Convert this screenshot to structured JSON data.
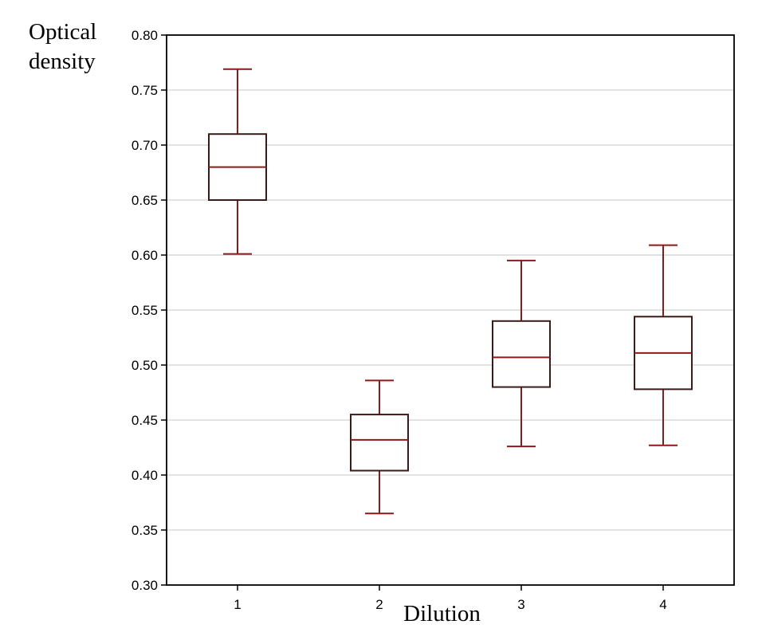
{
  "chart_data": {
    "type": "box",
    "title": "",
    "ylabel_lines": [
      "Optical",
      "density"
    ],
    "xlabel": "Dilution",
    "categories": [
      "1",
      "2",
      "3",
      "4"
    ],
    "ylim": [
      0.3,
      0.8
    ],
    "yticks": [
      "0.80",
      "0.75",
      "0.70",
      "0.65",
      "0.60",
      "0.55",
      "0.50",
      "0.45",
      "0.40",
      "0.35",
      "0.30"
    ],
    "grid": true,
    "boxes": [
      {
        "category": "1",
        "whisker_low": 0.601,
        "q1": 0.65,
        "median": 0.68,
        "q3": 0.71,
        "whisker_high": 0.769
      },
      {
        "category": "2",
        "whisker_low": 0.365,
        "q1": 0.404,
        "median": 0.432,
        "q3": 0.455,
        "whisker_high": 0.486
      },
      {
        "category": "3",
        "whisker_low": 0.426,
        "q1": 0.48,
        "median": 0.507,
        "q3": 0.54,
        "whisker_high": 0.595
      },
      {
        "category": "4",
        "whisker_low": 0.427,
        "q1": 0.478,
        "median": 0.511,
        "q3": 0.544,
        "whisker_high": 0.609
      }
    ],
    "colors": {
      "box_outline": "#3b1a1a",
      "whisker": "#8b1a1a",
      "median": "#8b1a1a",
      "grid": "#d9d9d9",
      "axis": "#000000"
    }
  }
}
